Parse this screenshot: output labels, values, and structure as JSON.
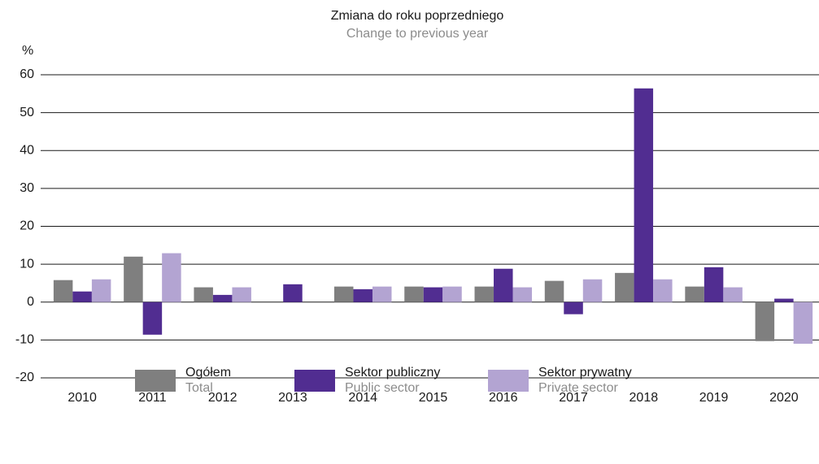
{
  "chart_data": {
    "type": "bar",
    "title": "Zmiana do roku poprzedniego",
    "subtitle": "Change to previous year",
    "y_label": "%",
    "categories": [
      "2010",
      "2011",
      "2012",
      "2013",
      "2014",
      "2015",
      "2016",
      "2017",
      "2018",
      "2019",
      "2020"
    ],
    "series": [
      {
        "name": "Ogółem",
        "subname": "Total",
        "color": "#7f7f7f",
        "values": [
          5.8,
          12.0,
          3.9,
          0,
          4.1,
          4.1,
          4.1,
          5.6,
          7.7,
          4.1,
          -10.3
        ]
      },
      {
        "name": "Sektor publiczny",
        "subname": "Public sector",
        "color": "#512d91",
        "values": [
          2.8,
          -8.6,
          1.9,
          4.7,
          3.4,
          3.9,
          8.8,
          -3.2,
          56.4,
          9.2,
          0.9
        ]
      },
      {
        "name": "Sektor prywatny",
        "subname": "Private sector",
        "color": "#b3a4d2",
        "values": [
          6.0,
          12.9,
          3.9,
          0,
          4.1,
          4.1,
          3.9,
          6.0,
          6.0,
          3.9,
          -11.0
        ]
      }
    ],
    "ylim": [
      -20,
      60
    ],
    "yticks": [
      -20,
      -10,
      0,
      10,
      20,
      30,
      40,
      50,
      60
    ],
    "grid": true
  }
}
